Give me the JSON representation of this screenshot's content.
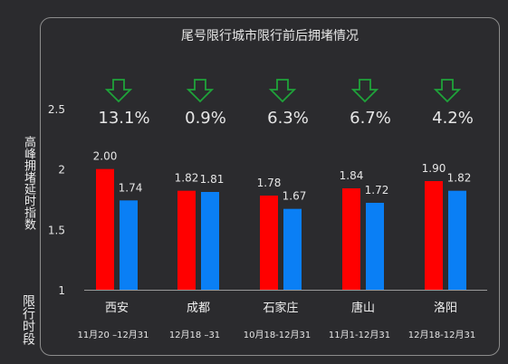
{
  "chart_data": {
    "type": "bar",
    "title": "尾号限行城市限行前后拥堵情况",
    "ylabel": "高峰拥堵延时指数",
    "ylim": [
      1,
      2.5
    ],
    "yticks": [
      "1",
      "1.5",
      "2",
      "2.5"
    ],
    "grid": false,
    "legend": "none",
    "categories": [
      "西安",
      "成都",
      "石家庄",
      "唐山",
      "洛阳"
    ],
    "periods": [
      "11月20 –12月31",
      "12月18 –31",
      "10月18-12月31",
      "11月1-12月31",
      "12月18-12月31"
    ],
    "period_label": "限行时段",
    "series": [
      {
        "values": [
          2.0,
          1.82,
          1.78,
          1.84,
          1.9
        ],
        "color": "#ff0000"
      },
      {
        "values": [
          1.74,
          1.81,
          1.67,
          1.72,
          1.82
        ],
        "color": "#0a7ff5"
      }
    ],
    "value_labels": [
      [
        "2.00",
        "1.82",
        "1.78",
        "1.84",
        "1.90"
      ],
      [
        "1.74",
        "1.81",
        "1.67",
        "1.72",
        "1.82"
      ]
    ],
    "changes": [
      "13.1%",
      "0.9%",
      "6.3%",
      "6.7%",
      "4.2%"
    ],
    "change_icon": "down-arrow-icon",
    "arrow_color": "#1fa33a",
    "axis_color": "#9a9a9a"
  }
}
